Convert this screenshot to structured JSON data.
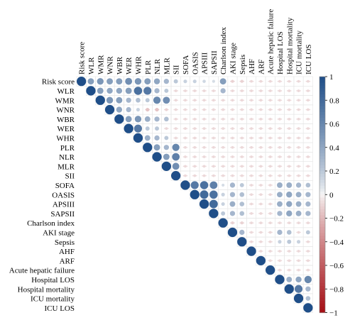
{
  "chart_data": {
    "type": "heatmap",
    "layout": "upper-triangle correlation plot with circles",
    "variables": [
      "Risk score",
      "WLR",
      "WMR",
      "WNR",
      "WBR",
      "WER",
      "WHR",
      "PLR",
      "NLR",
      "MLR",
      "SII",
      "SOFA",
      "OASIS",
      "APSIII",
      "SAPSII",
      "Charlson index",
      "AKI stage",
      "Sepsis",
      "AHF",
      "ARF",
      "Acute hepatic failure",
      "Hospital LOS",
      "Hospital mortality",
      "ICU mortality",
      "ICU LOS"
    ],
    "value_range": [
      -1,
      1
    ],
    "colorbar_ticks": [
      1,
      0.8,
      0.6,
      0.4,
      0.2,
      0,
      -0.2,
      -0.4,
      -0.6,
      -0.8,
      -1
    ],
    "colorbar_labels": [
      "1",
      "0.8",
      "0.6",
      "0.4",
      "0.2",
      "0",
      "−0.2",
      "−0.4",
      "−0.6",
      "−0.8",
      "−1"
    ],
    "colors": {
      "positive": "#1f4e88",
      "neutral": "#f7f7f7",
      "negative": "#a50f15",
      "grid": "#e6e6e6"
    },
    "legend": "right",
    "correlations": [
      {
        "i": 0,
        "j": 1,
        "r": 0.45
      },
      {
        "i": 0,
        "j": 2,
        "r": 0.5
      },
      {
        "i": 0,
        "j": 3,
        "r": 0.45
      },
      {
        "i": 0,
        "j": 4,
        "r": 0.45
      },
      {
        "i": 0,
        "j": 5,
        "r": 0.55
      },
      {
        "i": 0,
        "j": 6,
        "r": 0.5
      },
      {
        "i": 0,
        "j": 7,
        "r": 0.45
      },
      {
        "i": 0,
        "j": 8,
        "r": 0.4
      },
      {
        "i": 0,
        "j": 9,
        "r": 0.3
      },
      {
        "i": 0,
        "j": 10,
        "r": 0.2
      },
      {
        "i": 0,
        "j": 11,
        "r": 0.15
      },
      {
        "i": 0,
        "j": 12,
        "r": 0.15
      },
      {
        "i": 0,
        "j": 13,
        "r": 0.12
      },
      {
        "i": 0,
        "j": 14,
        "r": 0.1
      },
      {
        "i": 0,
        "j": 15,
        "r": 0.45
      },
      {
        "i": 0,
        "j": 16,
        "r": -0.1
      },
      {
        "i": 0,
        "j": 17,
        "r": -0.1
      },
      {
        "i": 1,
        "j": 2,
        "r": 0.45
      },
      {
        "i": 1,
        "j": 3,
        "r": 0.4
      },
      {
        "i": 1,
        "j": 4,
        "r": 0.4
      },
      {
        "i": 1,
        "j": 5,
        "r": 0.45
      },
      {
        "i": 1,
        "j": 6,
        "r": 0.75
      },
      {
        "i": 1,
        "j": 7,
        "r": 0.7
      },
      {
        "i": 1,
        "j": 8,
        "r": 0.3
      },
      {
        "i": 1,
        "j": 9,
        "r": 0.2
      },
      {
        "i": 1,
        "j": 15,
        "r": 0.3
      },
      {
        "i": 2,
        "j": 3,
        "r": 0.5
      },
      {
        "i": 2,
        "j": 4,
        "r": 0.45
      },
      {
        "i": 2,
        "j": 5,
        "r": 0.3
      },
      {
        "i": 2,
        "j": 6,
        "r": 0.25
      },
      {
        "i": 2,
        "j": 7,
        "r": 0.2
      },
      {
        "i": 2,
        "j": 8,
        "r": 0.6
      },
      {
        "i": 2,
        "j": 9,
        "r": 0.55
      },
      {
        "i": 3,
        "j": 4,
        "r": 0.4
      },
      {
        "i": 3,
        "j": 5,
        "r": 0.3
      },
      {
        "i": 3,
        "j": 6,
        "r": 0.15
      },
      {
        "i": 3,
        "j": 7,
        "r": -0.15
      },
      {
        "i": 3,
        "j": 8,
        "r": -0.15
      },
      {
        "i": 3,
        "j": 9,
        "r": -0.1
      },
      {
        "i": 4,
        "j": 5,
        "r": 0.45
      },
      {
        "i": 4,
        "j": 6,
        "r": 0.5
      },
      {
        "i": 4,
        "j": 7,
        "r": 0.35
      },
      {
        "i": 4,
        "j": 8,
        "r": 0.3
      },
      {
        "i": 4,
        "j": 9,
        "r": 0.25
      },
      {
        "i": 5,
        "j": 6,
        "r": 0.7
      },
      {
        "i": 5,
        "j": 7,
        "r": 0.2
      },
      {
        "i": 5,
        "j": 8,
        "r": 0.2
      },
      {
        "i": 6,
        "j": 7,
        "r": 0.35
      },
      {
        "i": 6,
        "j": 8,
        "r": 0.3
      },
      {
        "i": 6,
        "j": 9,
        "r": 0.2
      },
      {
        "i": 7,
        "j": 8,
        "r": 0.45
      },
      {
        "i": 7,
        "j": 9,
        "r": 0.3
      },
      {
        "i": 7,
        "j": 10,
        "r": 0.6
      },
      {
        "i": 8,
        "j": 9,
        "r": 0.45
      },
      {
        "i": 8,
        "j": 10,
        "r": 0.65
      },
      {
        "i": 9,
        "j": 10,
        "r": 0.55
      },
      {
        "i": 11,
        "j": 12,
        "r": 0.7
      },
      {
        "i": 11,
        "j": 13,
        "r": 0.75
      },
      {
        "i": 11,
        "j": 14,
        "r": 0.65
      },
      {
        "i": 11,
        "j": 15,
        "r": 0.1
      },
      {
        "i": 11,
        "j": 16,
        "r": 0.3
      },
      {
        "i": 11,
        "j": 17,
        "r": 0.2
      },
      {
        "i": 11,
        "j": 21,
        "r": 0.35
      },
      {
        "i": 11,
        "j": 22,
        "r": 0.35
      },
      {
        "i": 11,
        "j": 23,
        "r": 0.3
      },
      {
        "i": 11,
        "j": 24,
        "r": 0.25
      },
      {
        "i": 12,
        "j": 13,
        "r": 0.8
      },
      {
        "i": 12,
        "j": 14,
        "r": 0.75
      },
      {
        "i": 12,
        "j": 15,
        "r": 0.15
      },
      {
        "i": 12,
        "j": 16,
        "r": 0.3
      },
      {
        "i": 12,
        "j": 17,
        "r": 0.25
      },
      {
        "i": 12,
        "j": 21,
        "r": 0.35
      },
      {
        "i": 12,
        "j": 22,
        "r": 0.4
      },
      {
        "i": 12,
        "j": 23,
        "r": 0.35
      },
      {
        "i": 12,
        "j": 24,
        "r": 0.3
      },
      {
        "i": 13,
        "j": 14,
        "r": 0.8
      },
      {
        "i": 13,
        "j": 15,
        "r": 0.15
      },
      {
        "i": 13,
        "j": 16,
        "r": 0.35
      },
      {
        "i": 13,
        "j": 17,
        "r": 0.25
      },
      {
        "i": 13,
        "j": 21,
        "r": 0.35
      },
      {
        "i": 13,
        "j": 22,
        "r": 0.4
      },
      {
        "i": 13,
        "j": 23,
        "r": 0.35
      },
      {
        "i": 13,
        "j": 24,
        "r": 0.3
      },
      {
        "i": 14,
        "j": 15,
        "r": 0.2
      },
      {
        "i": 14,
        "j": 16,
        "r": 0.3
      },
      {
        "i": 14,
        "j": 17,
        "r": 0.25
      },
      {
        "i": 14,
        "j": 21,
        "r": 0.3
      },
      {
        "i": 14,
        "j": 22,
        "r": 0.4
      },
      {
        "i": 14,
        "j": 23,
        "r": 0.35
      },
      {
        "i": 14,
        "j": 24,
        "r": 0.3
      },
      {
        "i": 15,
        "j": 16,
        "r": -0.1
      },
      {
        "i": 15,
        "j": 17,
        "r": -0.1
      },
      {
        "i": 16,
        "j": 17,
        "r": 0.3
      },
      {
        "i": 16,
        "j": 21,
        "r": 0.3
      },
      {
        "i": 16,
        "j": 22,
        "r": 0.25
      },
      {
        "i": 16,
        "j": 24,
        "r": 0.2
      },
      {
        "i": 17,
        "j": 21,
        "r": 0.15
      },
      {
        "i": 17,
        "j": 22,
        "r": 0.2
      },
      {
        "i": 17,
        "j": 23,
        "r": 0.15
      },
      {
        "i": 21,
        "j": 22,
        "r": 0.35
      },
      {
        "i": 21,
        "j": 23,
        "r": 0.4
      },
      {
        "i": 21,
        "j": 24,
        "r": 0.6
      },
      {
        "i": 22,
        "j": 23,
        "r": 0.7
      },
      {
        "i": 22,
        "j": 24,
        "r": 0.3
      },
      {
        "i": 23,
        "j": 24,
        "r": 0.25
      }
    ],
    "weak_negative_default": -0.08
  }
}
